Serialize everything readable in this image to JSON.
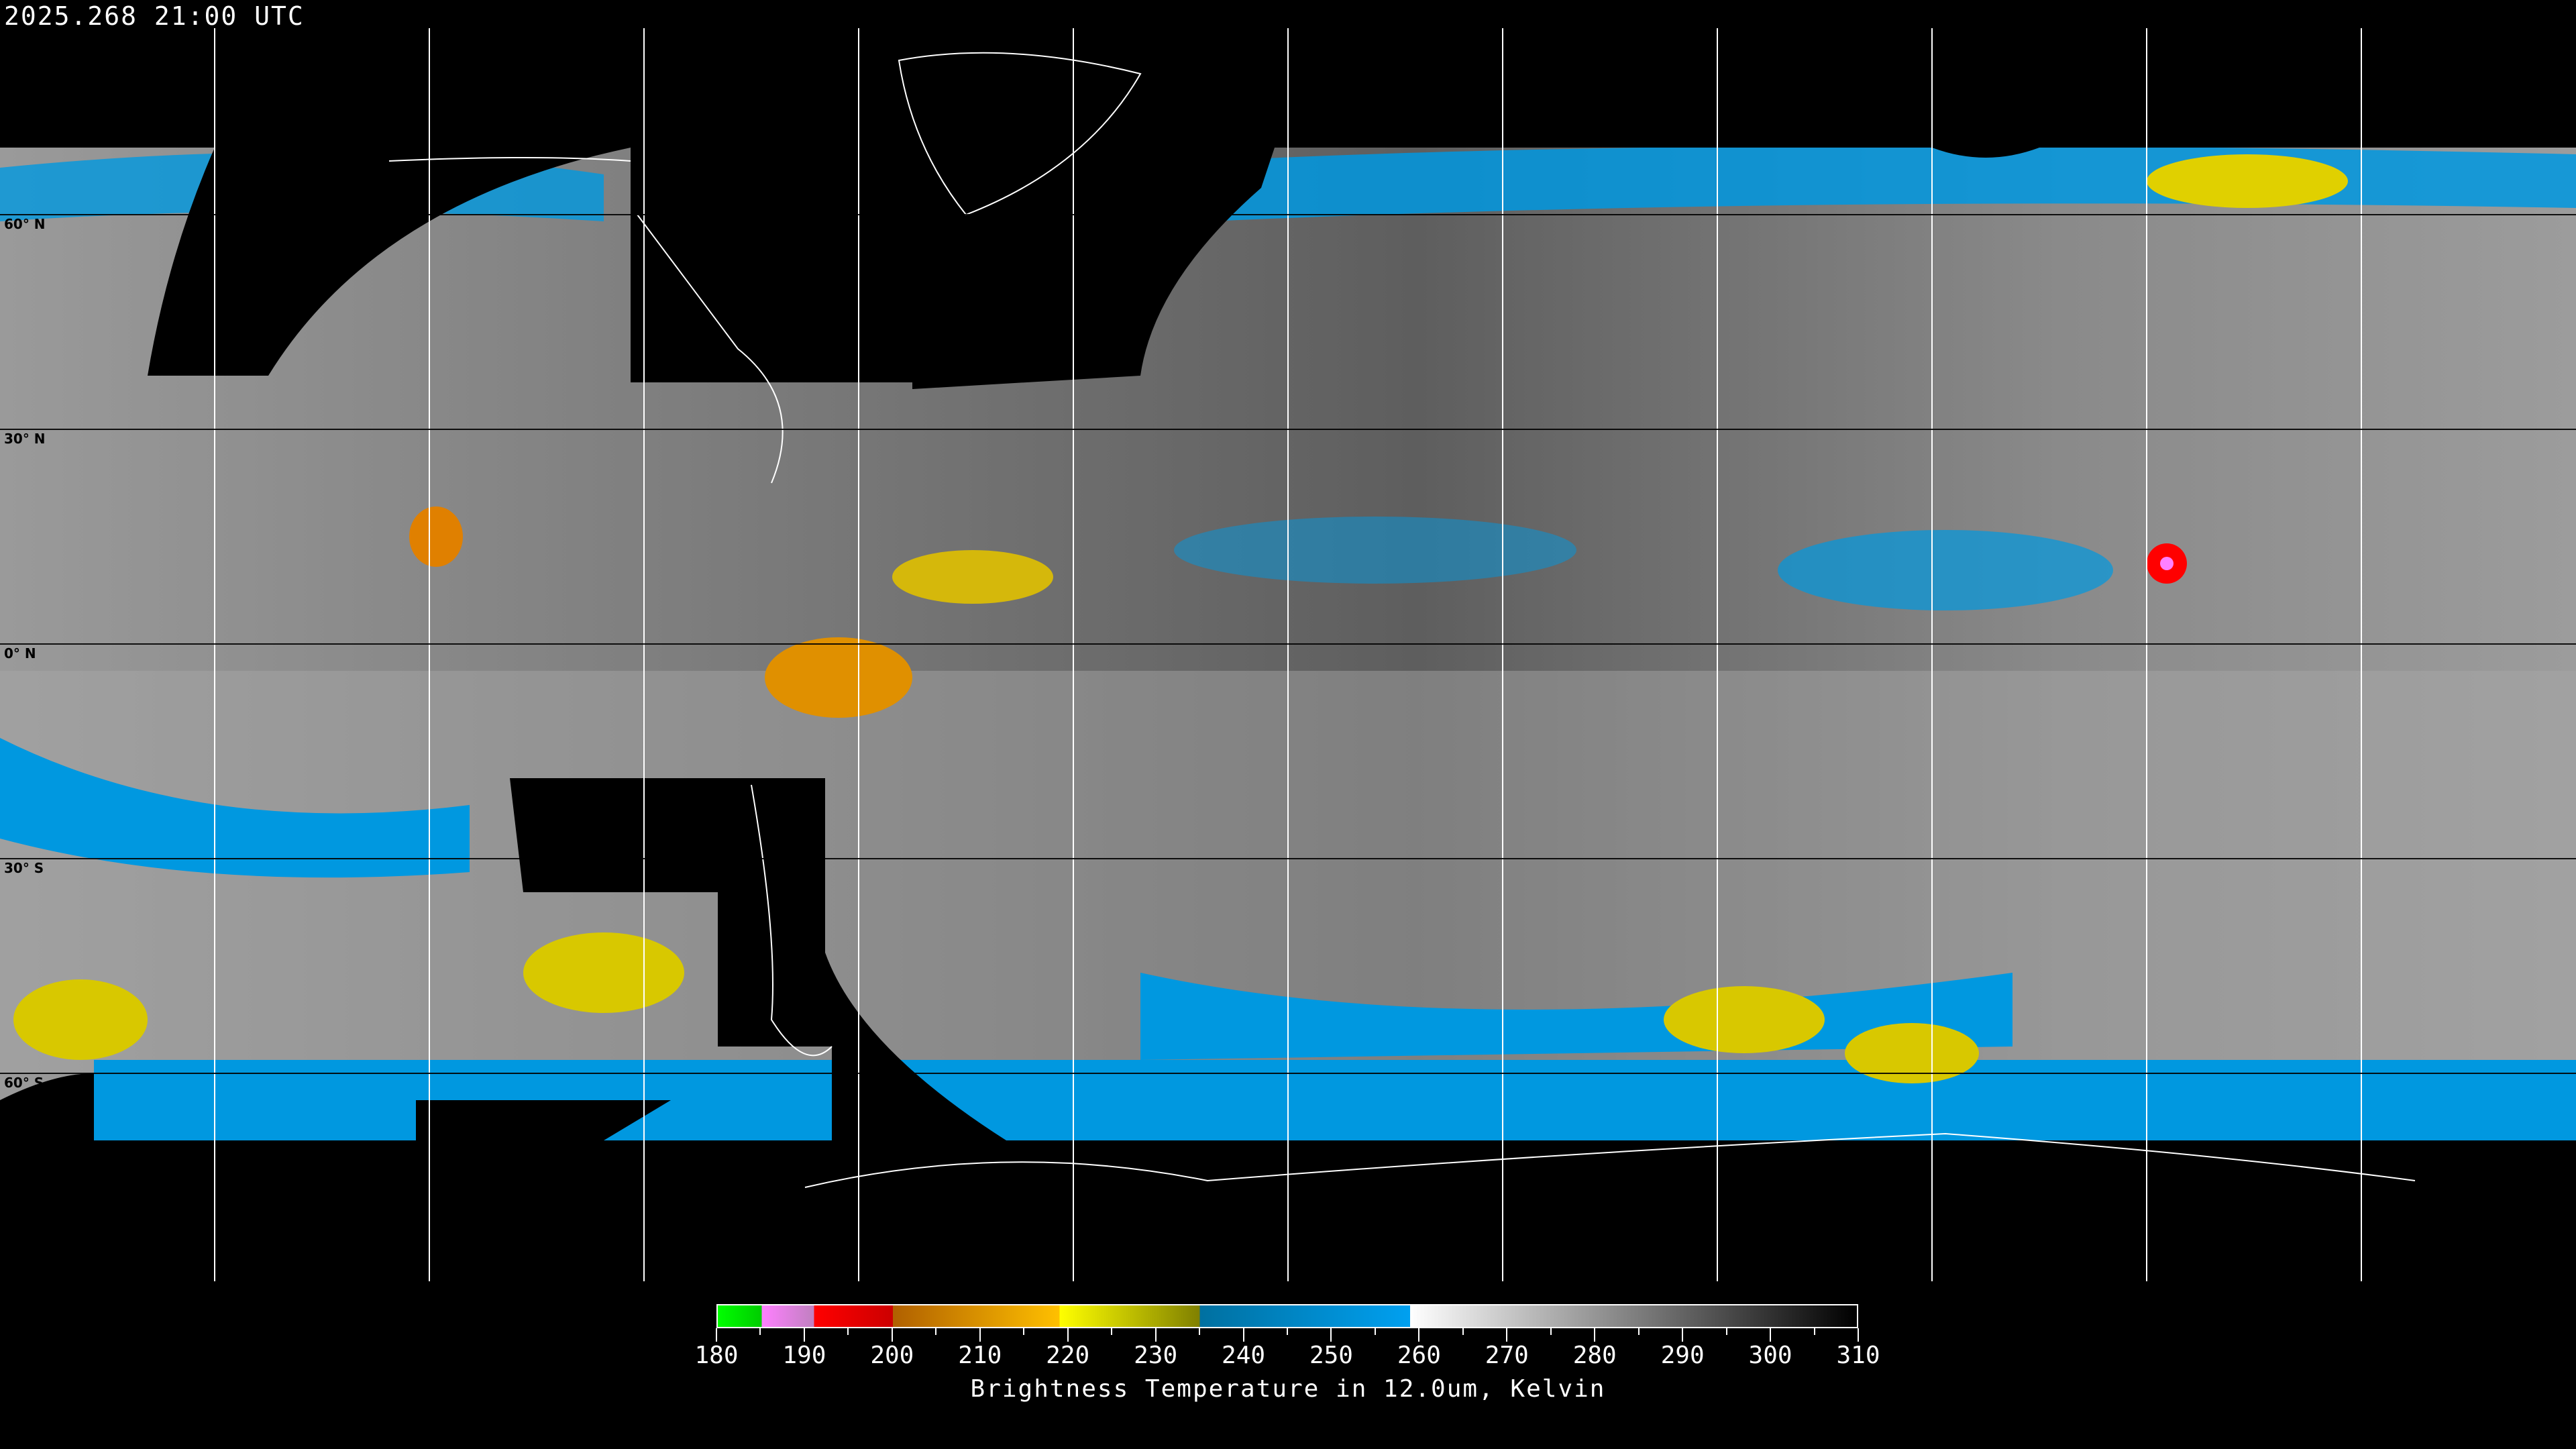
{
  "header": {
    "timestamp": "2025.268 21:00 UTC"
  },
  "map": {
    "projection": "equirectangular",
    "graticule_spacing_deg": 30,
    "lat_labels": [
      "60° N",
      "30° N",
      "0° N",
      "30° S",
      "60° S"
    ],
    "no_data_color": "#000000",
    "coastline_color": "#ffffff"
  },
  "colorbar": {
    "title": "Brightness Temperature in 12.0um, Kelvin",
    "min": 180,
    "max": 310,
    "tick_labels": [
      "180",
      "190",
      "200",
      "210",
      "220",
      "230",
      "240",
      "250",
      "260",
      "270",
      "280",
      "290",
      "300",
      "310"
    ],
    "segments": [
      {
        "from": 180,
        "to": 185,
        "colors": [
          "#00ff00",
          "#00cc00"
        ]
      },
      {
        "from": 185,
        "to": 191,
        "colors": [
          "#ff80ff",
          "#c080c0"
        ]
      },
      {
        "from": 191,
        "to": 200,
        "colors": [
          "#ff0000",
          "#cc0000"
        ]
      },
      {
        "from": 200,
        "to": 219,
        "colors": [
          "#b06000",
          "#ffc000"
        ]
      },
      {
        "from": 219,
        "to": 235,
        "colors": [
          "#ffff00",
          "#808000"
        ]
      },
      {
        "from": 235,
        "to": 259,
        "colors": [
          "#0070a0",
          "#00a0f0"
        ]
      },
      {
        "from": 259,
        "to": 310,
        "colors": [
          "#ffffff",
          "#000000"
        ]
      }
    ]
  }
}
